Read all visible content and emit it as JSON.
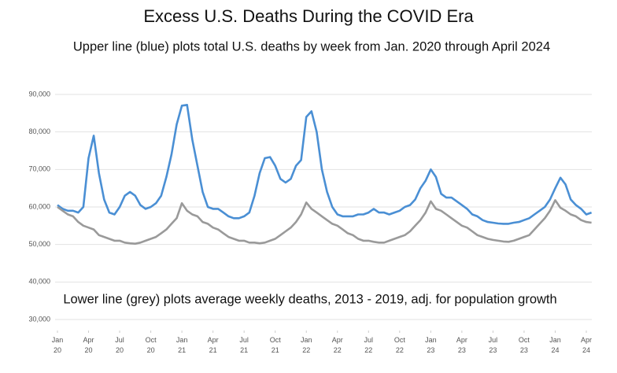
{
  "chart_data": {
    "type": "line",
    "title": "Excess U.S. Deaths During the COVID Era",
    "subtitle": "Upper line (blue) plots total U.S. deaths by week from Jan. 2020 through April 2024",
    "annotation": "Lower line (grey) plots average weekly deaths, 2013 - 2019, adj. for population growth",
    "x": [
      0,
      0.5,
      1,
      1.5,
      2,
      2.5,
      3,
      3.5,
      4,
      4.5,
      5,
      5.5,
      6,
      6.5,
      7,
      7.5,
      8,
      8.5,
      9,
      9.5,
      10,
      10.5,
      11,
      11.5,
      12,
      12.5,
      13,
      13.5,
      14,
      14.5,
      15,
      15.5,
      16,
      16.5,
      17,
      17.5,
      18,
      18.5,
      19,
      19.5,
      20,
      20.5,
      21,
      21.5,
      22,
      22.5,
      23,
      23.5,
      24,
      24.5,
      25,
      25.5,
      26,
      26.5,
      27,
      27.5,
      28,
      28.5,
      29,
      29.5,
      30,
      30.5,
      31,
      31.5,
      32,
      32.5,
      33,
      33.5,
      34,
      34.5,
      35,
      35.5,
      36,
      36.5,
      37,
      37.5,
      38,
      38.5,
      39,
      39.5,
      40,
      40.5,
      41,
      41.5,
      42,
      42.5,
      43,
      43.5,
      44,
      44.5,
      45,
      45.5,
      46,
      46.5,
      47,
      47.5,
      48,
      48.5,
      49,
      49.5,
      50,
      50.5,
      51,
      51.5
    ],
    "series": [
      {
        "name": "Upper line (blue)",
        "color": "#4a8fd4",
        "values": [
          60500,
          59500,
          59000,
          59000,
          58500,
          60000,
          73000,
          79000,
          69000,
          62000,
          58500,
          58000,
          60000,
          63000,
          64000,
          63000,
          60500,
          59500,
          60000,
          61000,
          63000,
          68000,
          74000,
          82000,
          87000,
          87200,
          78000,
          71000,
          64000,
          60000,
          59500,
          59500,
          58500,
          57500,
          57000,
          57000,
          57500,
          58500,
          63000,
          69000,
          73000,
          73300,
          71000,
          67500,
          66500,
          67500,
          71000,
          72500,
          84000,
          85500,
          80000,
          70000,
          64000,
          60000,
          58000,
          57500,
          57500,
          57500,
          58000,
          58000,
          58500,
          59500,
          58500,
          58500,
          58000,
          58500,
          59000,
          60000,
          60500,
          62000,
          65000,
          67000,
          70000,
          68000,
          63500,
          62500,
          62500,
          61500,
          60500,
          59500,
          58000,
          57500,
          56500,
          56000,
          55800,
          55600,
          55500,
          55500,
          55800,
          56000,
          56500,
          57000,
          58000,
          59000,
          60000,
          62000,
          65000,
          67800,
          66000,
          62000,
          60500,
          59500,
          58000,
          58500
        ]
      },
      {
        "name": "Lower line (grey)",
        "color": "#9a9a9a",
        "values": [
          60000,
          59000,
          58000,
          57500,
          56000,
          55000,
          54500,
          54000,
          52500,
          52000,
          51500,
          51000,
          51000,
          50500,
          50300,
          50200,
          50500,
          51000,
          51500,
          52000,
          53000,
          54000,
          55500,
          57000,
          61000,
          59000,
          58000,
          57500,
          56000,
          55500,
          54500,
          54000,
          53000,
          52000,
          51500,
          51000,
          51000,
          50500,
          50500,
          50300,
          50500,
          51000,
          51500,
          52500,
          53500,
          54500,
          56000,
          58000,
          61200,
          59500,
          58500,
          57500,
          56500,
          55500,
          55000,
          54000,
          53000,
          52500,
          51500,
          51000,
          51000,
          50700,
          50500,
          50500,
          51000,
          51500,
          52000,
          52500,
          53500,
          55000,
          56500,
          58500,
          61500,
          59500,
          59000,
          58000,
          57000,
          56000,
          55000,
          54500,
          53500,
          52500,
          52000,
          51500,
          51200,
          51000,
          50800,
          50700,
          51000,
          51500,
          52000,
          52500,
          54000,
          55500,
          57000,
          59000,
          61800,
          59800,
          59000,
          58000,
          57500,
          56500,
          56000,
          55800
        ]
      }
    ],
    "xlim": [
      0,
      51
    ],
    "xticks": [
      {
        "value": 0,
        "label": "Jan 20"
      },
      {
        "value": 3,
        "label": "Apr 20"
      },
      {
        "value": 6,
        "label": "Jul 20"
      },
      {
        "value": 9,
        "label": "Oct 20"
      },
      {
        "value": 12,
        "label": "Jan 21"
      },
      {
        "value": 15,
        "label": "Apr 21"
      },
      {
        "value": 18,
        "label": "Jul 21"
      },
      {
        "value": 21,
        "label": "Oct 21"
      },
      {
        "value": 24,
        "label": "Jan 22"
      },
      {
        "value": 27,
        "label": "Apr 22"
      },
      {
        "value": 30,
        "label": "Jul 22"
      },
      {
        "value": 33,
        "label": "Oct 22"
      },
      {
        "value": 36,
        "label": "Jan 23"
      },
      {
        "value": 39,
        "label": "Apr 23"
      },
      {
        "value": 42,
        "label": "Jul 23"
      },
      {
        "value": 45,
        "label": "Oct 23"
      },
      {
        "value": 48,
        "label": "Jan 24"
      },
      {
        "value": 51,
        "label": "Apr 24"
      }
    ],
    "ylim": [
      30000,
      90000
    ],
    "yticks": [
      {
        "value": 30000,
        "label": "30,000"
      },
      {
        "value": 40000,
        "label": "40,000"
      },
      {
        "value": 50000,
        "label": "50,000"
      },
      {
        "value": 60000,
        "label": "60,000"
      },
      {
        "value": 70000,
        "label": "70,000"
      },
      {
        "value": 80000,
        "label": "80,000"
      },
      {
        "value": 90000,
        "label": "90,000"
      }
    ],
    "grid": true
  }
}
